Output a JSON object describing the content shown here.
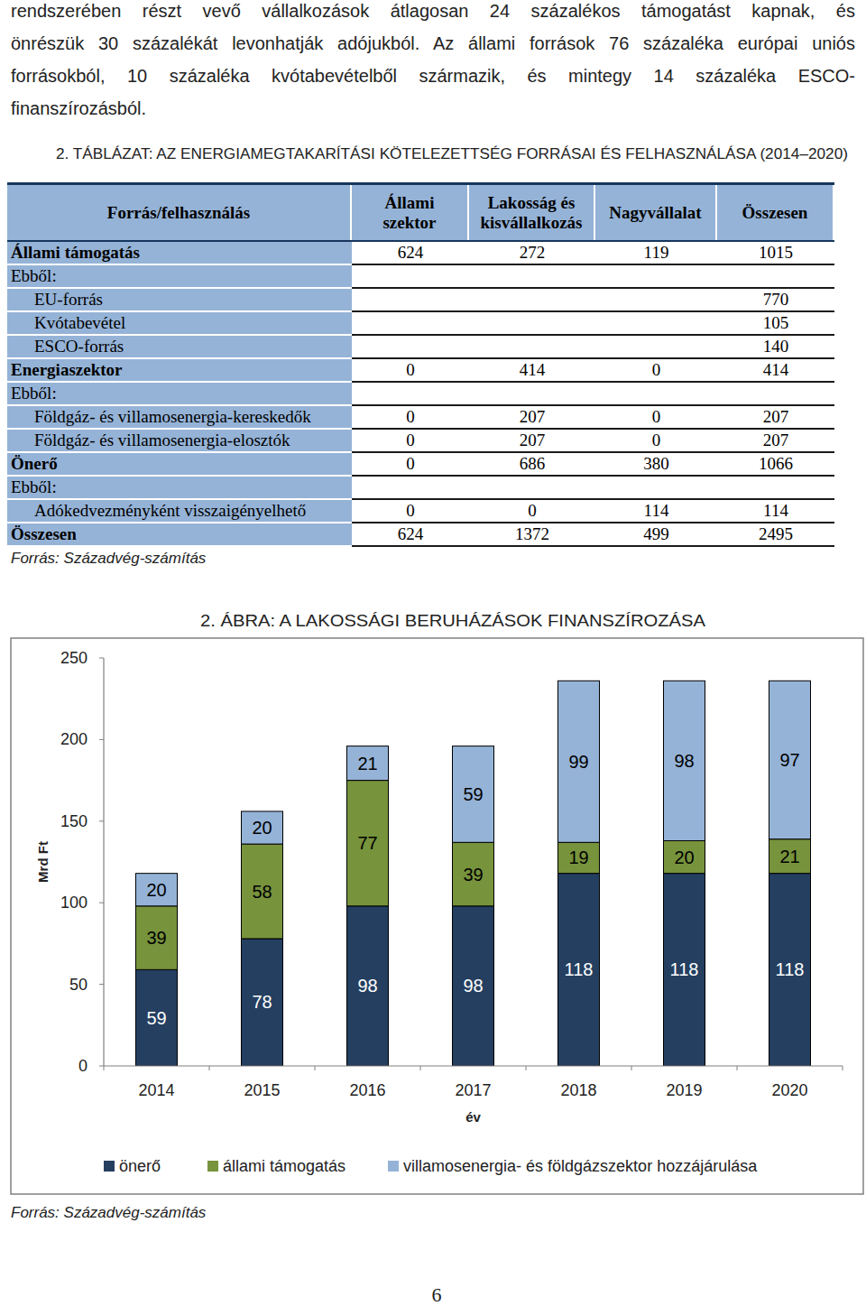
{
  "intro_lines": [
    "rendszerében részt vevő vállalkozások átlagosan 24 százalékos támogatást kapnak, és",
    "önrészük 30 százalékát levonhatják adójukból. Az állami források 76 százaléka európai uniós",
    "forrásokból, 10 százaléka kvótabevételből származik, és mintegy 14 százaléka ESCO-",
    "finanszírozásból."
  ],
  "table": {
    "title": "2. TÁBLÁZAT: AZ ENERGIAMEGTAKARÍTÁSI KÖTELEZETTSÉG FORRÁSAI ÉS FELHASZNÁLÁSA (2014–2020)",
    "header": [
      "Forrás/felhasználás",
      "Állami szektor",
      "Lakosság és kisvállalkozás",
      "Nagyvállalat",
      "Összesen"
    ],
    "rows": [
      [
        "Állami támogatás",
        624,
        272,
        119,
        1015
      ],
      [
        "Ebből:",
        null,
        null,
        null,
        null
      ],
      [
        "EU-forrás",
        null,
        null,
        null,
        770
      ],
      [
        "Kvótabevétel",
        null,
        null,
        null,
        105
      ],
      [
        "ESCO-forrás",
        null,
        null,
        null,
        140
      ],
      [
        "Energiaszektor",
        0,
        414,
        0,
        414
      ],
      [
        "Ebből:",
        null,
        null,
        null,
        null
      ],
      [
        "Földgáz- és villamosenergia-kereskedők",
        0,
        207,
        0,
        207
      ],
      [
        "Földgáz- és villamosenergia-elosztók",
        0,
        207,
        0,
        207
      ],
      [
        "Önerő",
        0,
        686,
        380,
        1066
      ],
      [
        "Ebből:",
        null,
        null,
        null,
        null
      ],
      [
        "Adókedvezményként visszaigényelhető",
        0,
        0,
        114,
        114
      ],
      [
        "Összesen",
        624,
        1372,
        499,
        2495
      ]
    ],
    "source": "Forrás: Századvég-számítás"
  },
  "chart_data": {
    "type": "bar",
    "title": "2. ÁBRA: A LAKOSSÁGI BERUHÁZÁSOK FINANSZÍROZÁSA",
    "x_label": "év",
    "y_label": "Mrd Ft",
    "categories": [
      "2014",
      "2015",
      "2016",
      "2017",
      "2018",
      "2019",
      "2020"
    ],
    "series": [
      {
        "name": "önerő",
        "color": "#243f60",
        "values": [
          59,
          78,
          98,
          98,
          118,
          118,
          118
        ]
      },
      {
        "name": "állami támogatás",
        "color": "#77933c",
        "values": [
          39,
          58,
          77,
          39,
          19,
          20,
          21
        ]
      },
      {
        "name": "villamosenergia- és földgázszektor hozzájárulása",
        "color": "#95b3d7",
        "values": [
          20,
          20,
          21,
          59,
          99,
          98,
          97
        ]
      }
    ],
    "ylim": [
      0,
      250
    ],
    "yticks": [
      0,
      50,
      100,
      150,
      200,
      250
    ],
    "stacked": true,
    "data_labels": true,
    "grid": false,
    "legend": "bottom",
    "source": "Forrás: Századvég-számítás"
  },
  "page_number": "6"
}
